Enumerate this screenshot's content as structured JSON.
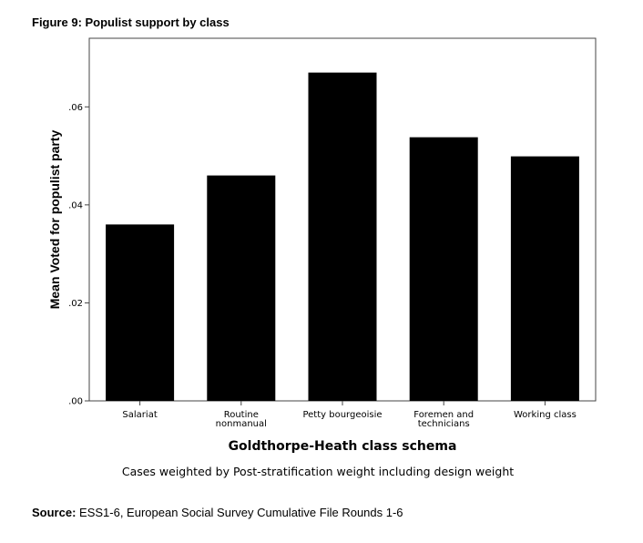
{
  "figure_title": "Figure 9: Populist support by class",
  "caption": "Cases weighted by Post-stratification weight including design weight",
  "source": {
    "label": "Source:",
    "text": " ESS1-6, European Social Survey Cumulative File Rounds 1-6"
  },
  "chart_data": {
    "type": "bar",
    "categories": [
      [
        "Salariat"
      ],
      [
        "Routine",
        "nonmanual"
      ],
      [
        "Petty bourgeoisie"
      ],
      [
        "Foremen and",
        "technicians"
      ],
      [
        "Working class"
      ]
    ],
    "values": [
      0.036,
      0.046,
      0.067,
      0.0538,
      0.0499
    ],
    "xlabel": "Goldthorpe-Heath class schema",
    "ylabel": "Mean Voted for populist party",
    "ylim": [
      0,
      0.074
    ],
    "yticks": [
      0,
      0.02,
      0.04,
      0.06
    ],
    "ytick_labels": [
      ".00",
      ".02",
      ".04",
      ".06"
    ],
    "grid": false,
    "bar_color": "#000000",
    "frame_color": "#444444"
  }
}
